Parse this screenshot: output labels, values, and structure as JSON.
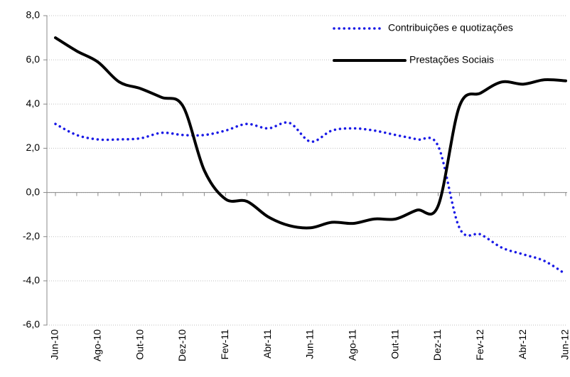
{
  "chart_data": {
    "type": "line",
    "categories": [
      "Jun-10",
      null,
      "Ago-10",
      null,
      "Out-10",
      null,
      "Dez-10",
      null,
      "Fev-11",
      null,
      "Abr-11",
      null,
      "Jun-11",
      null,
      "Ago-11",
      null,
      "Out-11",
      null,
      "Dez-11",
      null,
      "Fev-12",
      null,
      "Abr-12",
      null,
      "Jun-12"
    ],
    "series": [
      {
        "name": "Contribuições e quotizações",
        "color": "#1a1ae6",
        "dash": "dotted",
        "values": [
          3.1,
          2.6,
          2.4,
          2.4,
          2.45,
          2.7,
          2.6,
          2.6,
          2.8,
          3.1,
          2.9,
          3.15,
          2.3,
          2.8,
          2.9,
          2.8,
          2.6,
          2.4,
          2.1,
          -1.6,
          -1.9,
          -2.5,
          -2.8,
          -3.1,
          -3.7
        ]
      },
      {
        "name": "Prestações Sociais",
        "color": "#000000",
        "dash": "solid",
        "values": [
          7.0,
          6.4,
          5.9,
          5.0,
          4.7,
          4.3,
          3.9,
          1.0,
          -0.3,
          -0.4,
          -1.1,
          -1.5,
          -1.6,
          -1.35,
          -1.4,
          -1.2,
          -1.2,
          -0.8,
          -0.6,
          3.9,
          4.5,
          5.0,
          4.9,
          5.1,
          5.05
        ]
      }
    ],
    "ylim": [
      -6,
      8
    ],
    "yticks": [
      {
        "value": -6,
        "label": "-6,0"
      },
      {
        "value": -4,
        "label": "-4,0"
      },
      {
        "value": -2,
        "label": "-2,0"
      },
      {
        "value": 0,
        "label": "0,0"
      },
      {
        "value": 2,
        "label": "2,0"
      },
      {
        "value": 4,
        "label": "4,0"
      },
      {
        "value": 6,
        "label": "6,0"
      },
      {
        "value": 8,
        "label": "8,0"
      }
    ],
    "grid": true,
    "legend": "top-right"
  }
}
